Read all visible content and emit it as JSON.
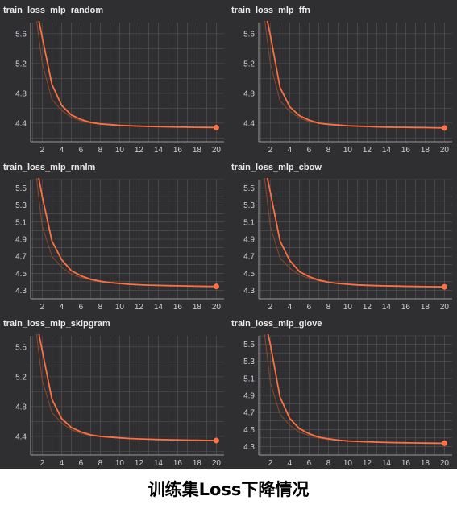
{
  "page": {
    "caption": "训练集Loss下降情况"
  },
  "colors": {
    "background": "#2f2f31",
    "grid": "#58585c",
    "axis": "#9a9a9a",
    "tick_text": "#d2d2d2",
    "title_text": "#eaeaea",
    "series_smoothed": "#ff7043",
    "series_raw": "#8a4a2e"
  },
  "chart_data": [
    {
      "type": "line",
      "title": "train_loss_mlp_random",
      "xlabel": "",
      "ylabel": "",
      "xticks": [
        2,
        4,
        6,
        8,
        10,
        12,
        14,
        16,
        18,
        20
      ],
      "yticks": [
        4.4,
        4.8,
        5.2,
        5.6
      ],
      "xlim": [
        0.8,
        20.8
      ],
      "ylim": [
        4.15,
        5.75
      ],
      "grid": true,
      "series": [
        {
          "style": "smoothed",
          "x": [
            1,
            2,
            3,
            4,
            5,
            6,
            7,
            8,
            9,
            10,
            11,
            12,
            13,
            14,
            15,
            16,
            17,
            18,
            19,
            20
          ],
          "y": [
            6.2,
            5.55,
            4.92,
            4.64,
            4.51,
            4.45,
            4.41,
            4.39,
            4.38,
            4.37,
            4.365,
            4.36,
            4.355,
            4.353,
            4.35,
            4.348,
            4.346,
            4.344,
            4.342,
            4.34
          ]
        },
        {
          "style": "raw",
          "x": [
            1,
            2,
            3,
            4,
            5,
            6,
            7,
            8,
            9,
            10,
            11,
            12,
            13,
            14,
            15,
            16,
            17,
            18,
            19,
            20
          ],
          "y": [
            6.2,
            5.2,
            4.72,
            4.57,
            4.48,
            4.43,
            4.4,
            4.385,
            4.375,
            4.368,
            4.362,
            4.357,
            4.353,
            4.35,
            4.348,
            4.346,
            4.344,
            4.342,
            4.341,
            4.34
          ]
        }
      ]
    },
    {
      "type": "line",
      "title": "train_loss_mlp_ffn",
      "xlabel": "",
      "ylabel": "",
      "xticks": [
        2,
        4,
        6,
        8,
        10,
        12,
        14,
        16,
        18,
        20
      ],
      "yticks": [
        4.4,
        4.8,
        5.2,
        5.6
      ],
      "xlim": [
        0.8,
        20.8
      ],
      "ylim": [
        4.15,
        5.75
      ],
      "grid": true,
      "series": [
        {
          "style": "smoothed",
          "x": [
            1,
            2,
            3,
            4,
            5,
            6,
            7,
            8,
            9,
            10,
            11,
            12,
            13,
            14,
            15,
            16,
            17,
            18,
            19,
            20
          ],
          "y": [
            6.2,
            5.58,
            4.88,
            4.62,
            4.5,
            4.44,
            4.4,
            4.385,
            4.375,
            4.365,
            4.36,
            4.355,
            4.35,
            4.347,
            4.345,
            4.343,
            4.341,
            4.34,
            4.338,
            4.335
          ]
        },
        {
          "style": "raw",
          "x": [
            1,
            2,
            3,
            4,
            5,
            6,
            7,
            8,
            9,
            10,
            11,
            12,
            13,
            14,
            15,
            16,
            17,
            18,
            19,
            20
          ],
          "y": [
            6.2,
            5.2,
            4.7,
            4.56,
            4.47,
            4.42,
            4.395,
            4.38,
            4.37,
            4.362,
            4.357,
            4.352,
            4.348,
            4.345,
            4.343,
            4.341,
            4.34,
            4.338,
            4.337,
            4.335
          ]
        }
      ]
    },
    {
      "type": "line",
      "title": "train_loss_mlp_rnnlm",
      "xlabel": "",
      "ylabel": "",
      "xticks": [
        2,
        4,
        6,
        8,
        10,
        12,
        14,
        16,
        18,
        20
      ],
      "yticks": [
        4.3,
        4.5,
        4.7,
        4.9,
        5.1,
        5.3,
        5.5
      ],
      "xlim": [
        0.8,
        20.8
      ],
      "ylim": [
        4.2,
        5.6
      ],
      "grid": true,
      "series": [
        {
          "style": "smoothed",
          "x": [
            1,
            2,
            3,
            4,
            5,
            6,
            7,
            8,
            9,
            10,
            11,
            12,
            13,
            14,
            15,
            16,
            17,
            18,
            19,
            20
          ],
          "y": [
            6.0,
            5.4,
            4.88,
            4.66,
            4.53,
            4.47,
            4.43,
            4.405,
            4.39,
            4.38,
            4.37,
            4.365,
            4.36,
            4.357,
            4.354,
            4.352,
            4.35,
            4.348,
            4.346,
            4.345
          ]
        },
        {
          "style": "raw",
          "x": [
            1,
            2,
            3,
            4,
            5,
            6,
            7,
            8,
            9,
            10,
            11,
            12,
            13,
            14,
            15,
            16,
            17,
            18,
            19,
            20
          ],
          "y": [
            6.0,
            5.05,
            4.7,
            4.57,
            4.49,
            4.45,
            4.42,
            4.4,
            4.385,
            4.375,
            4.367,
            4.362,
            4.358,
            4.355,
            4.353,
            4.351,
            4.349,
            4.347,
            4.346,
            4.345
          ]
        }
      ]
    },
    {
      "type": "line",
      "title": "train_loss_mlp_cbow",
      "xlabel": "",
      "ylabel": "",
      "xticks": [
        2,
        4,
        6,
        8,
        10,
        12,
        14,
        16,
        18,
        20
      ],
      "yticks": [
        4.3,
        4.5,
        4.7,
        4.9,
        5.1,
        5.3,
        5.5
      ],
      "xlim": [
        0.8,
        20.8
      ],
      "ylim": [
        4.2,
        5.6
      ],
      "grid": true,
      "series": [
        {
          "style": "smoothed",
          "x": [
            1,
            2,
            3,
            4,
            5,
            6,
            7,
            8,
            9,
            10,
            11,
            12,
            13,
            14,
            15,
            16,
            17,
            18,
            19,
            20
          ],
          "y": [
            6.0,
            5.45,
            4.88,
            4.65,
            4.52,
            4.46,
            4.42,
            4.395,
            4.38,
            4.37,
            4.363,
            4.358,
            4.354,
            4.351,
            4.349,
            4.347,
            4.345,
            4.343,
            4.342,
            4.34
          ]
        },
        {
          "style": "raw",
          "x": [
            1,
            2,
            3,
            4,
            5,
            6,
            7,
            8,
            9,
            10,
            11,
            12,
            13,
            14,
            15,
            16,
            17,
            18,
            19,
            20
          ],
          "y": [
            6.0,
            5.05,
            4.68,
            4.56,
            4.48,
            4.44,
            4.41,
            4.39,
            4.377,
            4.367,
            4.36,
            4.355,
            4.352,
            4.349,
            4.347,
            4.345,
            4.344,
            4.342,
            4.341,
            4.34
          ]
        }
      ]
    },
    {
      "type": "line",
      "title": "train_loss_mlp_skipgram",
      "xlabel": "",
      "ylabel": "",
      "xticks": [
        2,
        4,
        6,
        8,
        10,
        12,
        14,
        16,
        18,
        20
      ],
      "yticks": [
        4.4,
        4.8,
        5.2,
        5.6
      ],
      "xlim": [
        0.8,
        20.8
      ],
      "ylim": [
        4.15,
        5.75
      ],
      "grid": true,
      "series": [
        {
          "style": "smoothed",
          "x": [
            1,
            2,
            3,
            4,
            5,
            6,
            7,
            8,
            9,
            10,
            11,
            12,
            13,
            14,
            15,
            16,
            17,
            18,
            19,
            20
          ],
          "y": [
            6.2,
            5.55,
            4.9,
            4.64,
            4.52,
            4.46,
            4.42,
            4.4,
            4.39,
            4.38,
            4.372,
            4.366,
            4.362,
            4.358,
            4.355,
            4.352,
            4.35,
            4.348,
            4.346,
            4.345
          ]
        },
        {
          "style": "raw",
          "x": [
            1,
            2,
            3,
            4,
            5,
            6,
            7,
            8,
            9,
            10,
            11,
            12,
            13,
            14,
            15,
            16,
            17,
            18,
            19,
            20
          ],
          "y": [
            6.2,
            5.15,
            4.72,
            4.58,
            4.49,
            4.44,
            4.41,
            4.395,
            4.385,
            4.376,
            4.369,
            4.364,
            4.36,
            4.356,
            4.353,
            4.351,
            4.349,
            4.347,
            4.346,
            4.345
          ]
        }
      ]
    },
    {
      "type": "line",
      "title": "train_loss_mlp_glove",
      "xlabel": "",
      "ylabel": "",
      "xticks": [
        2,
        4,
        6,
        8,
        10,
        12,
        14,
        16,
        18,
        20
      ],
      "yticks": [
        4.3,
        4.5,
        4.7,
        4.9,
        5.1,
        5.3,
        5.5
      ],
      "xlim": [
        0.8,
        20.8
      ],
      "ylim": [
        4.2,
        5.6
      ],
      "grid": true,
      "series": [
        {
          "style": "smoothed",
          "x": [
            1,
            2,
            3,
            4,
            5,
            6,
            7,
            8,
            9,
            10,
            11,
            12,
            13,
            14,
            15,
            16,
            17,
            18,
            19,
            20
          ],
          "y": [
            6.0,
            5.5,
            4.88,
            4.63,
            4.51,
            4.45,
            4.41,
            4.39,
            4.375,
            4.365,
            4.36,
            4.355,
            4.351,
            4.348,
            4.346,
            4.344,
            4.342,
            4.34,
            4.339,
            4.338
          ]
        },
        {
          "style": "raw",
          "x": [
            1,
            2,
            3,
            4,
            5,
            6,
            7,
            8,
            9,
            10,
            11,
            12,
            13,
            14,
            15,
            16,
            17,
            18,
            19,
            20
          ],
          "y": [
            6.0,
            5.05,
            4.68,
            4.55,
            4.47,
            4.43,
            4.4,
            4.383,
            4.372,
            4.363,
            4.357,
            4.352,
            4.349,
            4.346,
            4.344,
            4.342,
            4.341,
            4.34,
            4.339,
            4.338
          ]
        }
      ]
    }
  ]
}
